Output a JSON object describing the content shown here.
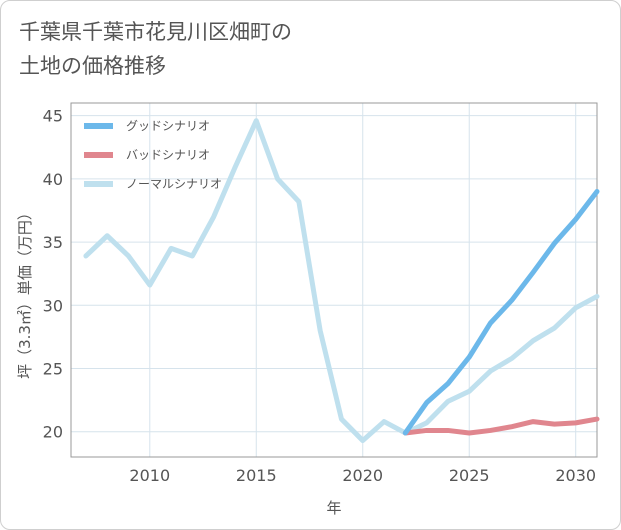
{
  "chart_data": {
    "type": "line",
    "title": "千葉県千葉市花見川区畑町の土地の価格推移",
    "title_lines": [
      "千葉県千葉市花見川区畑町の",
      "土地の価格推移"
    ],
    "xlabel": "年",
    "ylabel": "坪（3.3㎡）単価（万円）",
    "xlim": [
      2006.3,
      2031
    ],
    "ylim": [
      18,
      46
    ],
    "xticks": [
      2010,
      2015,
      2020,
      2025,
      2030
    ],
    "yticks": [
      20,
      25,
      30,
      35,
      40,
      45
    ],
    "grid": true,
    "legend_position": "top-left",
    "series": [
      {
        "name": "グッドシナリオ",
        "color": "#6cb8ea",
        "x": [
          2022,
          2023,
          2024,
          2025,
          2026,
          2027,
          2028,
          2029,
          2030,
          2031
        ],
        "values": [
          19.9,
          22.3,
          23.8,
          25.9,
          28.6,
          30.4,
          32.6,
          34.9,
          36.8,
          39.0
        ]
      },
      {
        "name": "バッドシナリオ",
        "color": "#e0868e",
        "x": [
          2022,
          2023,
          2024,
          2025,
          2026,
          2027,
          2028,
          2029,
          2030,
          2031
        ],
        "values": [
          19.9,
          20.1,
          20.1,
          19.9,
          20.1,
          20.4,
          20.8,
          20.6,
          20.7,
          21.0
        ]
      },
      {
        "name": "ノーマルシナリオ",
        "color": "#bfe0ee",
        "x": [
          2007,
          2008,
          2009,
          2010,
          2011,
          2012,
          2013,
          2014,
          2015,
          2016,
          2017,
          2018,
          2019,
          2020,
          2021,
          2022,
          2023,
          2024,
          2025,
          2026,
          2027,
          2028,
          2029,
          2030,
          2031
        ],
        "values": [
          33.9,
          35.5,
          33.9,
          31.6,
          34.5,
          33.9,
          37.0,
          40.9,
          44.6,
          40.0,
          38.2,
          28.0,
          21.0,
          19.3,
          20.8,
          19.9,
          20.7,
          22.4,
          23.2,
          24.8,
          25.8,
          27.2,
          28.2,
          29.8,
          30.7
        ]
      }
    ]
  }
}
